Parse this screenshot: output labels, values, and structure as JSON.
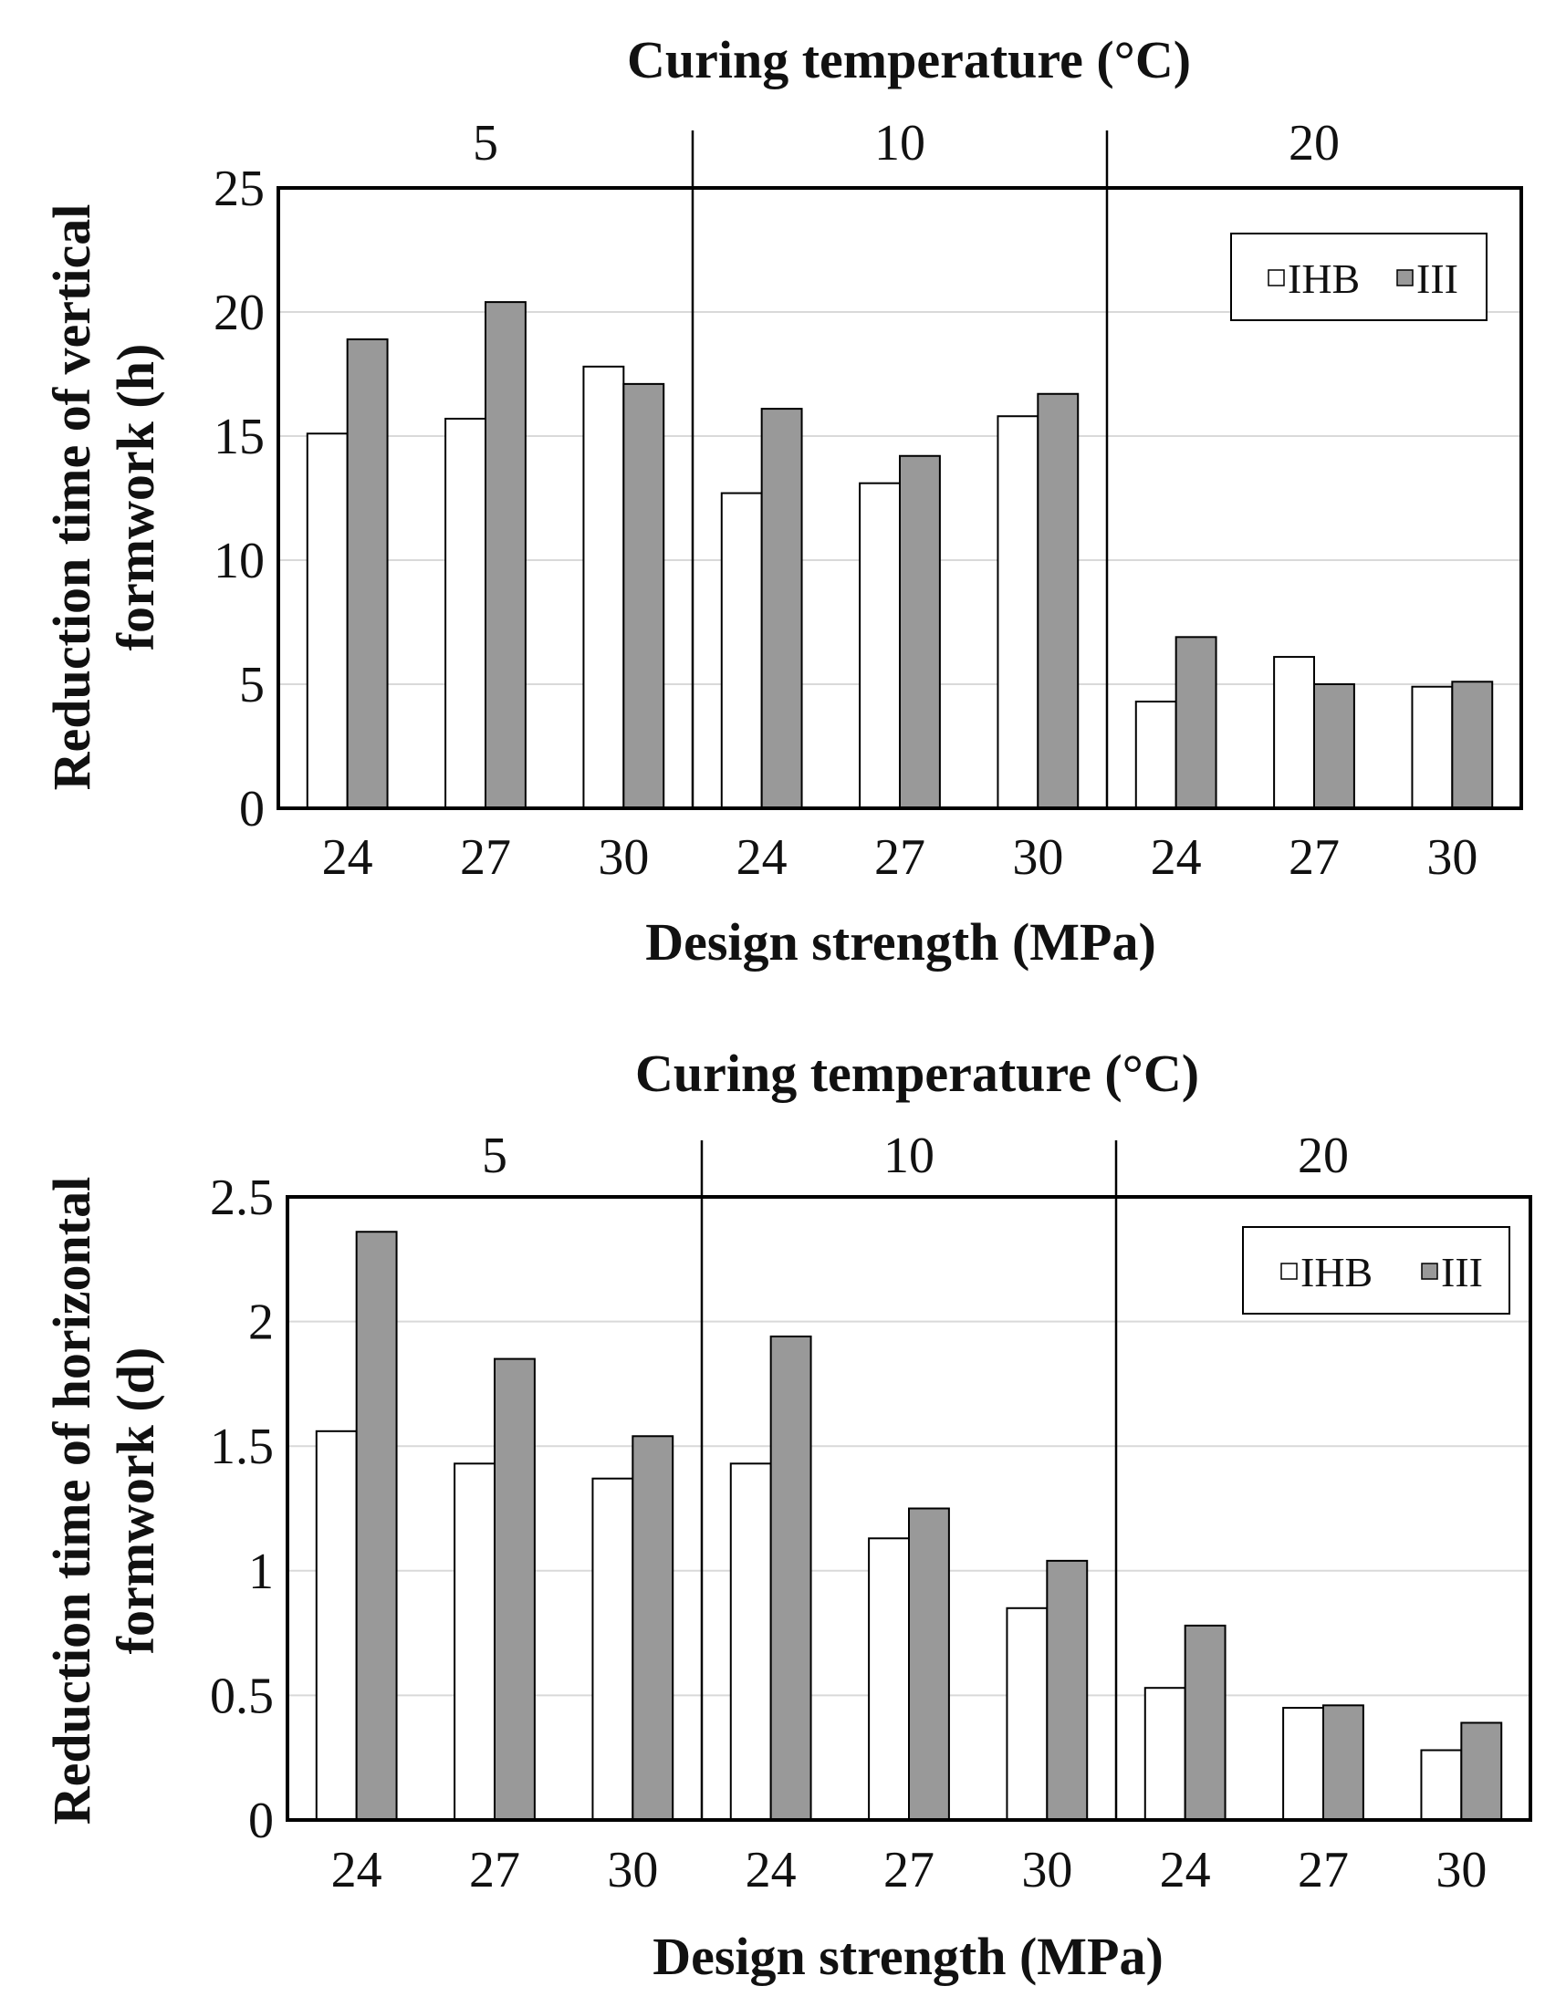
{
  "chart_data": [
    {
      "type": "bar",
      "top_axis_title": "Curing temperature (°C)",
      "groups": [
        "5",
        "10",
        "20"
      ],
      "categories": [
        "24",
        "27",
        "30",
        "24",
        "27",
        "30",
        "24",
        "27",
        "30"
      ],
      "xlabel": "Design strength (MPa)",
      "ylabel": [
        "Reduction time of vertical",
        "formwork (h)"
      ],
      "ylim": [
        0,
        25
      ],
      "yticks": [
        "0",
        "5",
        "10",
        "15",
        "20",
        "25"
      ],
      "grid": true,
      "legend_position": "top-right",
      "series": [
        {
          "name": "IHB",
          "color": "#ffffff",
          "values": [
            15.1,
            15.7,
            17.8,
            12.7,
            13.1,
            15.8,
            4.3,
            6.1,
            4.9
          ]
        },
        {
          "name": "III",
          "color": "#999999",
          "values": [
            18.9,
            20.4,
            17.1,
            16.1,
            14.2,
            16.7,
            6.9,
            5.0,
            5.1
          ]
        }
      ]
    },
    {
      "type": "bar",
      "top_axis_title": "Curing temperature (°C)",
      "groups": [
        "5",
        "10",
        "20"
      ],
      "categories": [
        "24",
        "27",
        "30",
        "24",
        "27",
        "30",
        "24",
        "27",
        "30"
      ],
      "xlabel": "Design strength (MPa)",
      "ylabel": [
        "Reduction time of horizontal",
        "formwork (d)"
      ],
      "ylim": [
        0,
        2.5
      ],
      "yticks": [
        "0",
        "0.5",
        "1",
        "1.5",
        "2",
        "2.5"
      ],
      "grid": true,
      "legend_position": "top-right",
      "series": [
        {
          "name": "IHB",
          "color": "#ffffff",
          "values": [
            1.56,
            1.43,
            1.37,
            1.43,
            1.13,
            0.85,
            0.53,
            0.45,
            0.28
          ]
        },
        {
          "name": "III",
          "color": "#999999",
          "values": [
            2.36,
            1.85,
            1.54,
            1.94,
            1.25,
            1.04,
            0.78,
            0.46,
            0.39
          ]
        }
      ]
    }
  ]
}
